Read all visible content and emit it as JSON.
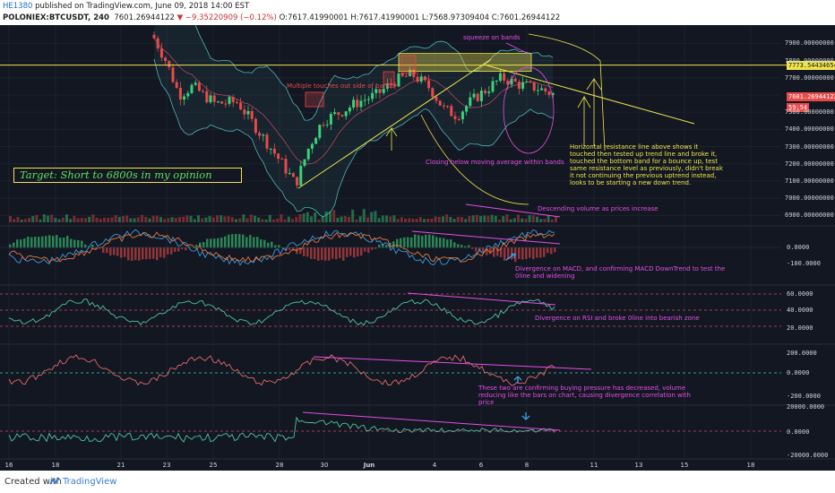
{
  "header": {
    "author": "HE1380",
    "published": " published on TradingView.com, June 09, 2018 14:00 EST",
    "symbol": "POLONIEX:BTCUSDT, 240",
    "last": "7601.26944122",
    "change": "▼ −9.35220909 (−0.12%)",
    "ohlc": "O:7617.41990001 H:7617.41990001 L:7568.97309404 C:7601.26944122"
  },
  "footer": {
    "created": "Created with",
    "brand": "TradingView"
  },
  "colors": {
    "bg": "#131722",
    "bull": "#3bd17a",
    "bear": "#e84a4a",
    "yellow": "#f0e54a",
    "magenta": "#e64ee6",
    "teal": "#4fb3b8",
    "pink": "#d0506a",
    "dashed": "#d04a6a"
  },
  "annotations": {
    "target": "Target: Short to 6800s in my opinion",
    "squeeze": "squeeze on bands",
    "multiple_touches": "Multiple touches out side of bands",
    "closing_below": "Closing below moving average within bands",
    "horizontal": [
      "Horizontal resistance line above shows it",
      "touched then tested up trend line and broke it,",
      "touched the bottom band for a bounce up, test",
      "same resistance level as previously, didn't break",
      "it not continuing the previous uptrend instead,",
      "looks to be starting a new down trend."
    ],
    "volume": "Descending volume as prices increase",
    "macd": [
      "Divergence on MACD, and confirming MACD DownTrend to test the",
      "0line and widening"
    ],
    "rsi": "Divergence on RSI and broke 0line into bearish zone",
    "pressure": [
      "These two are confirming buying pressure has decreased, volume",
      "reducing like the bars on chart, causing divergence correlation with",
      "price"
    ]
  },
  "price_tags": {
    "resistance": "7773.54434654",
    "last": "7601.26944122",
    "countdown": "59:54"
  },
  "chart_data": [
    {
      "type": "candlestick",
      "panel": "price",
      "x_ticks": [
        "16",
        "18",
        "21",
        "23",
        "25",
        "28",
        "30",
        "Jun",
        "4",
        "6",
        "8",
        "11",
        "13",
        "15",
        "18"
      ],
      "y_ticks": [
        "7900.00000000",
        "7800.00000000",
        "7700.00000000",
        "7500.00000000",
        "7400.00000000",
        "7300.00000000",
        "7200.00000000",
        "7100.00000000",
        "7000.00000000",
        "6900.00000000"
      ],
      "ylim": [
        6860,
        7980
      ],
      "resistance": 7773.54,
      "last": 7601.27
    },
    {
      "type": "bar",
      "panel": "volume",
      "trend": "descending"
    },
    {
      "type": "line",
      "panel": "MACD",
      "y_ticks": [
        "0.0000",
        "-100.0000"
      ]
    },
    {
      "type": "line",
      "panel": "RSI",
      "y_ticks": [
        "60.0000",
        "40.0000",
        "20.0000"
      ]
    },
    {
      "type": "line",
      "panel": "oscillator",
      "y_ticks": [
        "200.0000",
        "0.0000",
        "-200.0000"
      ]
    },
    {
      "type": "line",
      "panel": "volume oscillator",
      "y_ticks": [
        "20000.0000",
        "0.0000",
        "-20000.0000"
      ]
    }
  ]
}
